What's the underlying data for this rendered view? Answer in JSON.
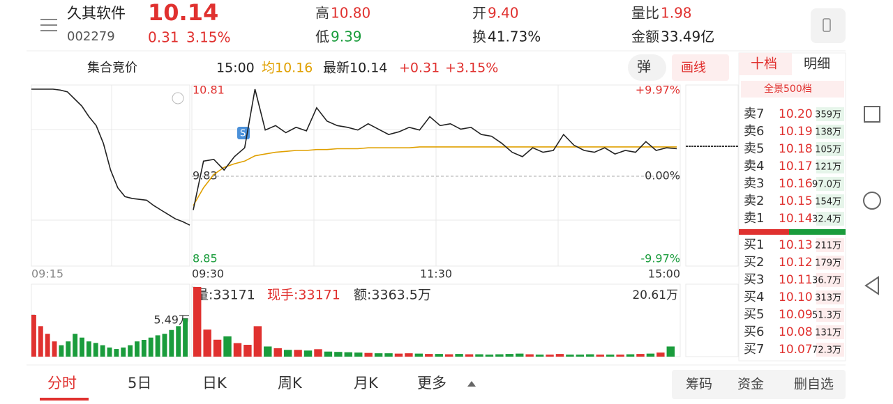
{
  "header": {
    "name": "久其软件",
    "code": "002279",
    "price": "10.14",
    "change": "0.31",
    "change_pct": "3.15%",
    "stats": [
      {
        "label": "高",
        "value": "10.80"
      },
      {
        "label": "开",
        "value": "9.40"
      },
      {
        "label": "量比",
        "value": "1.98"
      },
      {
        "label": "低",
        "value": "9.39"
      },
      {
        "label": "换",
        "value": "41.73%"
      },
      {
        "label": "金额",
        "value": "33.49亿"
      }
    ]
  },
  "toolbar": {
    "mode": "集合竞价",
    "time": "15:00",
    "avg": "均10.16",
    "latest": "最新10.14",
    "change": "+0.31",
    "change_pct": "+3.15%",
    "popup": "弹",
    "draw": "画线"
  },
  "chart": {
    "yticks": [
      8.85,
      9.83,
      10.81
    ],
    "pct_labels": [
      "-9.97%",
      "0.00%",
      "+9.97%"
    ],
    "times": [
      "09:15",
      "09:30",
      "11:30",
      "15:00"
    ],
    "badge": "S",
    "auction": [
      10.81,
      10.81,
      10.81,
      10.81,
      10.8,
      10.78,
      10.7,
      10.62,
      10.5,
      10.4,
      10.2,
      9.9,
      9.7,
      9.6,
      9.58,
      9.57,
      9.56,
      9.5,
      9.45,
      9.4,
      9.35,
      9.32,
      9.28
    ],
    "auction_volume": [
      5.49,
      4,
      3,
      2,
      1.5,
      2,
      3,
      2.5,
      2,
      1.8,
      1.5,
      1.2,
      1,
      1.2,
      1.5,
      2,
      2.2,
      2.5,
      2.8,
      3,
      3.5,
      4,
      5
    ],
    "auction_volume_tick": {
      "value": 5.49,
      "label": "5.49万"
    },
    "price": [
      9.45,
      10.0,
      10.02,
      9.9,
      10.05,
      10.15,
      10.81,
      10.35,
      10.4,
      10.32,
      10.38,
      10.34,
      10.6,
      10.45,
      10.4,
      10.38,
      10.35,
      10.42,
      10.36,
      10.3,
      10.33,
      10.38,
      10.35,
      10.5,
      10.4,
      10.42,
      10.36,
      10.38,
      10.3,
      10.28,
      10.2,
      10.1,
      10.05,
      10.15,
      10.1,
      10.12,
      10.3,
      10.18,
      10.12,
      10.1,
      10.15,
      10.08,
      10.12,
      10.1,
      10.22,
      10.12,
      10.15,
      10.14
    ],
    "avg": [
      9.5,
      9.7,
      9.85,
      9.93,
      9.97,
      10.0,
      10.06,
      10.08,
      10.1,
      10.11,
      10.12,
      10.12,
      10.13,
      10.13,
      10.14,
      10.14,
      10.14,
      10.15,
      10.15,
      10.15,
      10.15,
      10.15,
      10.16,
      10.16,
      10.16,
      10.16,
      10.16,
      10.16,
      10.16,
      10.16,
      10.16,
      10.16,
      10.16,
      10.16,
      10.16,
      10.16,
      10.16,
      10.16,
      10.16,
      10.16,
      10.16,
      10.16,
      10.16,
      10.16,
      10.16,
      10.16,
      10.16,
      10.16
    ],
    "volume": [
      20.61,
      8,
      5,
      6,
      4,
      3.5,
      9,
      3,
      2.5,
      2,
      2,
      1.8,
      2.2,
      1.5,
      1.4,
      1.3,
      1.2,
      1.1,
      1,
      1,
      0.9,
      1,
      0.9,
      0.8,
      0.8,
      0.7,
      0.8,
      0.7,
      0.7,
      0.6,
      0.7,
      0.8,
      0.9,
      0.7,
      0.6,
      0.6,
      0.8,
      0.6,
      0.6,
      0.7,
      0.6,
      0.6,
      0.6,
      0.7,
      0.8,
      0.9,
      1.2,
      3
    ],
    "volume_tick": {
      "value": 20.61,
      "label": "20.61万"
    },
    "volume_info": [
      "量:33171",
      "现手:33171",
      "额:3363.5万"
    ]
  },
  "orderbook": {
    "tabs": [
      "十档",
      "明细"
    ],
    "panorama": "全景500档",
    "asks": [
      [
        "卖7",
        "10.20",
        "359万"
      ],
      [
        "卖6",
        "10.19",
        "138万"
      ],
      [
        "卖5",
        "10.18",
        "105万"
      ],
      [
        "卖4",
        "10.17",
        "121万"
      ],
      [
        "卖3",
        "10.16",
        "97.0万"
      ],
      [
        "卖2",
        "10.15",
        "154万"
      ],
      [
        "卖1",
        "10.14",
        "32.4万"
      ]
    ],
    "bids": [
      [
        "买1",
        "10.13",
        "211万"
      ],
      [
        "买2",
        "10.12",
        "179万"
      ],
      [
        "买3",
        "10.11",
        "36.7万"
      ],
      [
        "买4",
        "10.10",
        "313万"
      ],
      [
        "买5",
        "10.09",
        "51.3万"
      ],
      [
        "买6",
        "10.08",
        "131万"
      ],
      [
        "买7",
        "10.07",
        "72.3万"
      ]
    ]
  },
  "tabs": [
    "分时",
    "5日",
    "日K",
    "周K",
    "月K",
    "更多"
  ],
  "actions": [
    "筹码",
    "资金",
    "删自选"
  ]
}
